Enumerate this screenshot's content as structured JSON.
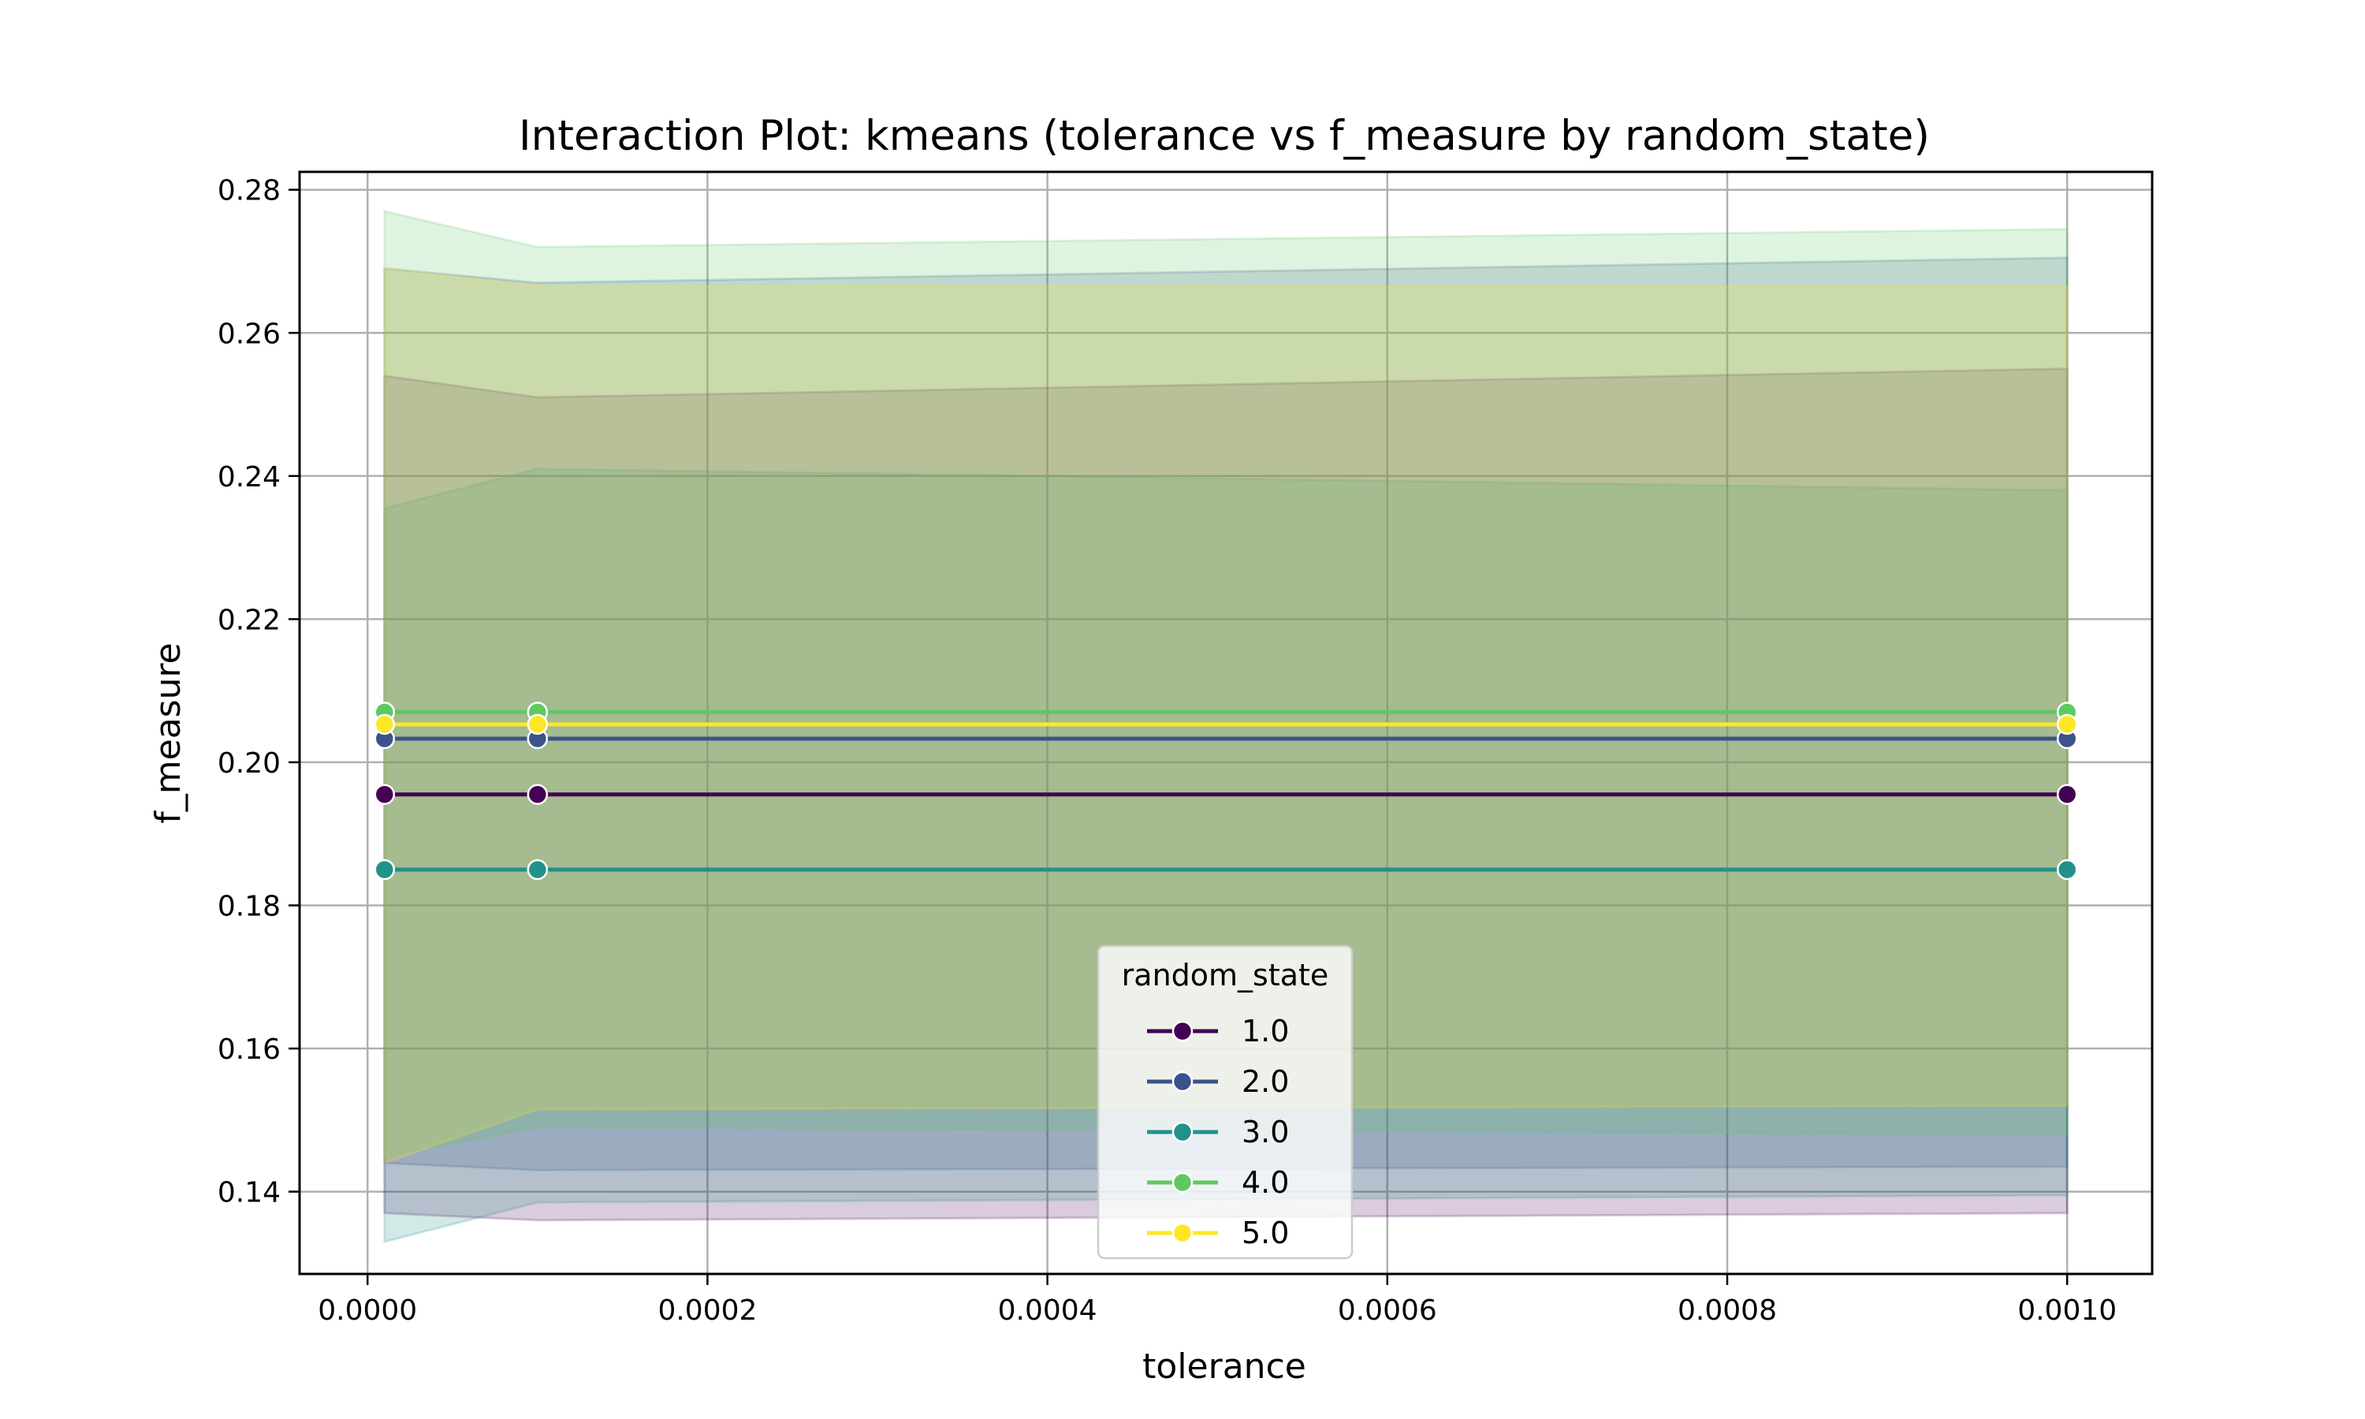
{
  "chart_data": {
    "type": "line",
    "title": "Interaction Plot: kmeans (tolerance vs f_measure by random_state)",
    "xlabel": "tolerance",
    "ylabel": "f_measure",
    "xlim": [
      -4e-05,
      0.00105
    ],
    "ylim": [
      0.1285,
      0.2825
    ],
    "xticks": [
      0.0,
      0.0002,
      0.0004,
      0.0006,
      0.0008,
      0.001
    ],
    "xtick_labels": [
      "0.0000",
      "0.0002",
      "0.0004",
      "0.0006",
      "0.0008",
      "0.0010"
    ],
    "yticks": [
      0.14,
      0.16,
      0.18,
      0.2,
      0.22,
      0.24,
      0.26,
      0.28
    ],
    "ytick_labels": [
      "0.14",
      "0.16",
      "0.18",
      "0.20",
      "0.22",
      "0.24",
      "0.26",
      "0.28"
    ],
    "grid": true,
    "legend": {
      "title": "random_state",
      "placement": "lower-center"
    },
    "x": [
      1e-05,
      0.0001,
      0.001
    ],
    "series": [
      {
        "name": "1.0",
        "color": "#440154",
        "values": [
          0.1955,
          0.1955,
          0.1955
        ],
        "band_lower": [
          0.137,
          0.136,
          0.137
        ],
        "band_upper": [
          0.254,
          0.251,
          0.255
        ]
      },
      {
        "name": "2.0",
        "color": "#3b528b",
        "values": [
          0.2033,
          0.2033,
          0.2033
        ],
        "band_lower": [
          0.144,
          0.143,
          0.1435
        ],
        "band_upper": [
          0.269,
          0.267,
          0.2705
        ]
      },
      {
        "name": "3.0",
        "color": "#21918c",
        "values": [
          0.185,
          0.185,
          0.185
        ],
        "band_lower": [
          0.133,
          0.1385,
          0.1395
        ],
        "band_upper": [
          0.2355,
          0.241,
          0.238
        ]
      },
      {
        "name": "4.0",
        "color": "#5ec962",
        "values": [
          0.207,
          0.207,
          0.207
        ],
        "band_lower": [
          0.145,
          0.149,
          0.148
        ],
        "band_upper": [
          0.277,
          0.272,
          0.2745
        ]
      },
      {
        "name": "5.0",
        "color": "#fde725",
        "values": [
          0.2053,
          0.2053,
          0.2053
        ],
        "band_lower": [
          0.144,
          0.1515,
          0.152
        ],
        "band_upper": [
          0.269,
          0.2665,
          0.2665
        ]
      }
    ]
  }
}
